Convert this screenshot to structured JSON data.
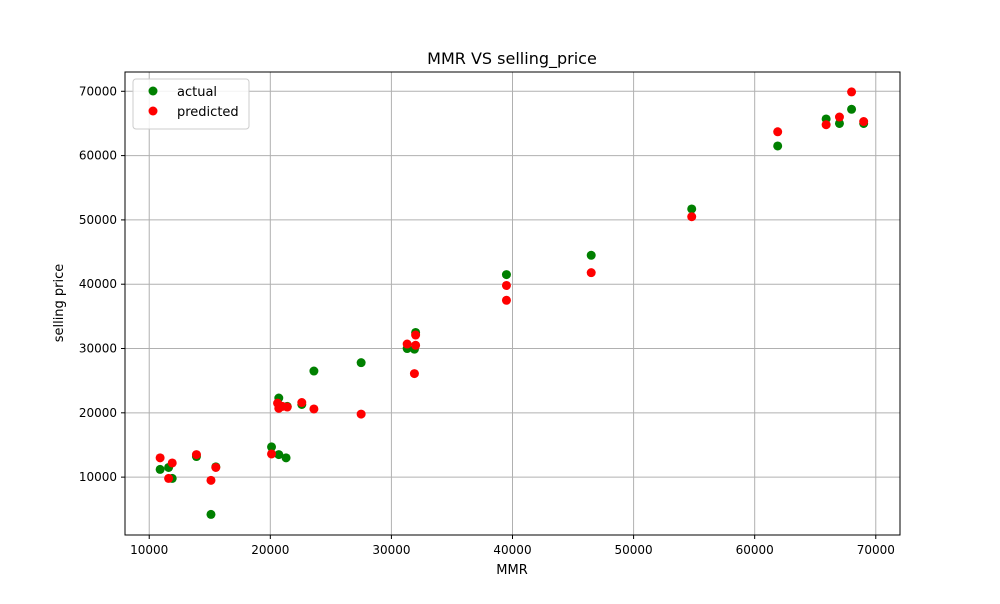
{
  "chart_data": {
    "type": "scatter",
    "title": "MMR VS selling_price",
    "xlabel": "MMR",
    "ylabel": "selling price",
    "xlim": [
      8000,
      72000
    ],
    "ylim": [
      1000,
      73000
    ],
    "xticks": [
      10000,
      20000,
      30000,
      40000,
      50000,
      60000,
      70000
    ],
    "yticks": [
      10000,
      20000,
      30000,
      40000,
      50000,
      60000,
      70000
    ],
    "grid": true,
    "legend_position": "top-left",
    "series": [
      {
        "name": "actual",
        "color": "#008000",
        "points": [
          [
            10900,
            11200
          ],
          [
            11600,
            11500
          ],
          [
            11900,
            9800
          ],
          [
            13900,
            13200
          ],
          [
            15100,
            4200
          ],
          [
            15500,
            11600
          ],
          [
            20100,
            14700
          ],
          [
            20700,
            13500
          ],
          [
            20700,
            22300
          ],
          [
            21300,
            13000
          ],
          [
            21400,
            21000
          ],
          [
            22600,
            21300
          ],
          [
            23600,
            26500
          ],
          [
            27500,
            27800
          ],
          [
            31300,
            30000
          ],
          [
            31900,
            29900
          ],
          [
            32000,
            32500
          ],
          [
            39500,
            41500
          ],
          [
            46500,
            44500
          ],
          [
            54800,
            51700
          ],
          [
            61900,
            61500
          ],
          [
            65900,
            65700
          ],
          [
            67000,
            65000
          ],
          [
            68000,
            67200
          ],
          [
            69000,
            65000
          ]
        ]
      },
      {
        "name": "predicted",
        "color": "#ff0000",
        "points": [
          [
            10900,
            13000
          ],
          [
            11600,
            9800
          ],
          [
            11900,
            12200
          ],
          [
            13900,
            13500
          ],
          [
            15100,
            9500
          ],
          [
            15500,
            11500
          ],
          [
            20100,
            13600
          ],
          [
            20600,
            21500
          ],
          [
            20700,
            20700
          ],
          [
            21000,
            21000
          ],
          [
            21400,
            20900
          ],
          [
            22600,
            21600
          ],
          [
            23600,
            20600
          ],
          [
            27500,
            19800
          ],
          [
            31300,
            30700
          ],
          [
            31900,
            26100
          ],
          [
            32000,
            30500
          ],
          [
            32000,
            32100
          ],
          [
            39500,
            39800
          ],
          [
            39500,
            37500
          ],
          [
            46500,
            41800
          ],
          [
            54800,
            50500
          ],
          [
            61900,
            63700
          ],
          [
            65900,
            64800
          ],
          [
            67000,
            66000
          ],
          [
            68000,
            69900
          ],
          [
            69000,
            65300
          ]
        ]
      }
    ]
  }
}
